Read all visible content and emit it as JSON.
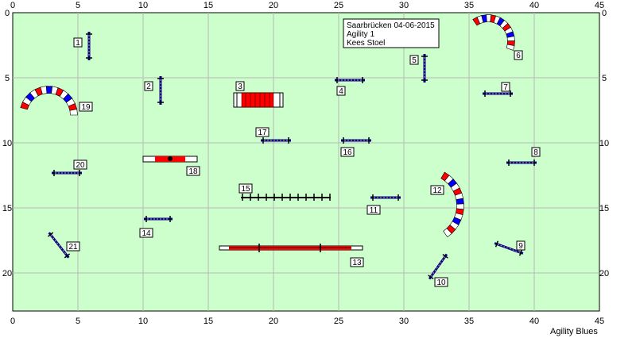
{
  "course": {
    "info_lines": [
      "Saarbrücken 04-06-2015",
      "Agility 1",
      "Kees Stoel"
    ],
    "brand": "Agility Blues",
    "x_ticks": [
      "0",
      "5",
      "10",
      "15",
      "20",
      "25",
      "30",
      "35",
      "40",
      "45"
    ],
    "y_ticks": [
      "0",
      "5",
      "10",
      "15",
      "20"
    ],
    "colors": {
      "field": "#ccffcc",
      "grid": "#b8b8b8",
      "pole": "#00008b",
      "red": "#ff0000",
      "blue": "#0000ff",
      "label_bg": "#ffffff"
    }
  },
  "obstacles": [
    {
      "num": "1",
      "kind": "jump"
    },
    {
      "num": "2",
      "kind": "jump"
    },
    {
      "num": "3",
      "kind": "tire"
    },
    {
      "num": "4",
      "kind": "jump"
    },
    {
      "num": "5",
      "kind": "jump"
    },
    {
      "num": "6",
      "kind": "tunnel"
    },
    {
      "num": "7",
      "kind": "jump"
    },
    {
      "num": "8",
      "kind": "jump"
    },
    {
      "num": "9",
      "kind": "jump"
    },
    {
      "num": "10",
      "kind": "jump"
    },
    {
      "num": "11",
      "kind": "jump"
    },
    {
      "num": "12",
      "kind": "tunnel"
    },
    {
      "num": "13",
      "kind": "dogwalk"
    },
    {
      "num": "14",
      "kind": "jump"
    },
    {
      "num": "15",
      "kind": "weave"
    },
    {
      "num": "16",
      "kind": "jump"
    },
    {
      "num": "17",
      "kind": "jump"
    },
    {
      "num": "18",
      "kind": "seesaw"
    },
    {
      "num": "19",
      "kind": "tunnel"
    },
    {
      "num": "20",
      "kind": "jump"
    },
    {
      "num": "21",
      "kind": "jump"
    }
  ]
}
